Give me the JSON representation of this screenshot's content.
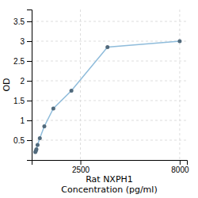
{
  "chart_data": {
    "type": "line",
    "x": [
      0,
      31.25,
      62.5,
      125,
      250,
      500,
      1000,
      2000,
      4000,
      8000
    ],
    "values": [
      0.2,
      0.23,
      0.27,
      0.38,
      0.55,
      0.85,
      1.3,
      1.75,
      2.85,
      3.0
    ],
    "color": "#8fbcdb",
    "marker": "circle",
    "xlabel": [
      "Rat NXPH1",
      "Concentration (pg/ml)"
    ],
    "ylabel": "OD",
    "xlim": [
      -200,
      8400
    ],
    "ylim": [
      0.0,
      3.8
    ],
    "xticks": [
      2500,
      8000
    ],
    "yticks": [
      0.5,
      1,
      1.5,
      2,
      2.5,
      3,
      3.5
    ],
    "grid": true
  }
}
